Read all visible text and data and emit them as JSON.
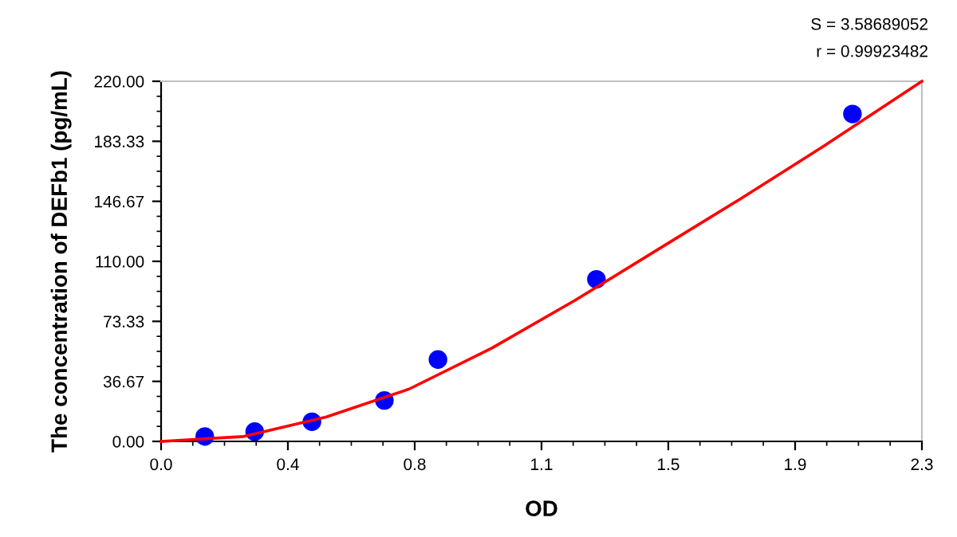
{
  "chart_data": {
    "type": "scatter",
    "xlabel": "OD",
    "ylabel": "The concentration of DEFb1 (pg/mL)",
    "annotations": [
      "S = 3.58689052",
      "r = 0.99923482"
    ],
    "series": [
      {
        "color": "#0000ff",
        "marker": "circle",
        "x": [
          0.132,
          0.283,
          0.456,
          0.675,
          0.837,
          1.316,
          2.09
        ],
        "values": [
          3,
          6,
          12,
          25,
          50,
          99,
          200
        ]
      },
      {
        "type": "line",
        "color": "#ff0000",
        "marker": "none",
        "x": [
          0,
          0.25,
          0.5,
          0.75,
          1.0,
          1.25,
          1.5,
          1.75,
          2.0,
          2.3
        ],
        "values": [
          0,
          3,
          15,
          32,
          57,
          86,
          117,
          148,
          180,
          220
        ]
      }
    ],
    "xlim": [
      0,
      2.3
    ],
    "ylim": [
      0,
      220
    ],
    "xticks": [
      {
        "value": 0,
        "label": "0.0"
      },
      {
        "value": 0.3833,
        "label": "0.4"
      },
      {
        "value": 0.7667,
        "label": "0.8"
      },
      {
        "value": 1.15,
        "label": "1.1"
      },
      {
        "value": 1.5333,
        "label": "1.5"
      },
      {
        "value": 1.9167,
        "label": "1.9"
      },
      {
        "value": 2.3,
        "label": "2.3"
      }
    ],
    "yticks": [
      {
        "value": 0,
        "label": "0.00"
      },
      {
        "value": 36.667,
        "label": "36.67"
      },
      {
        "value": 73.333,
        "label": "73.33"
      },
      {
        "value": 110,
        "label": "110.00"
      },
      {
        "value": 146.667,
        "label": "146.67"
      },
      {
        "value": 183.333,
        "label": "183.33"
      },
      {
        "value": 220,
        "label": "220.00"
      }
    ],
    "grid": false,
    "legend": false
  }
}
